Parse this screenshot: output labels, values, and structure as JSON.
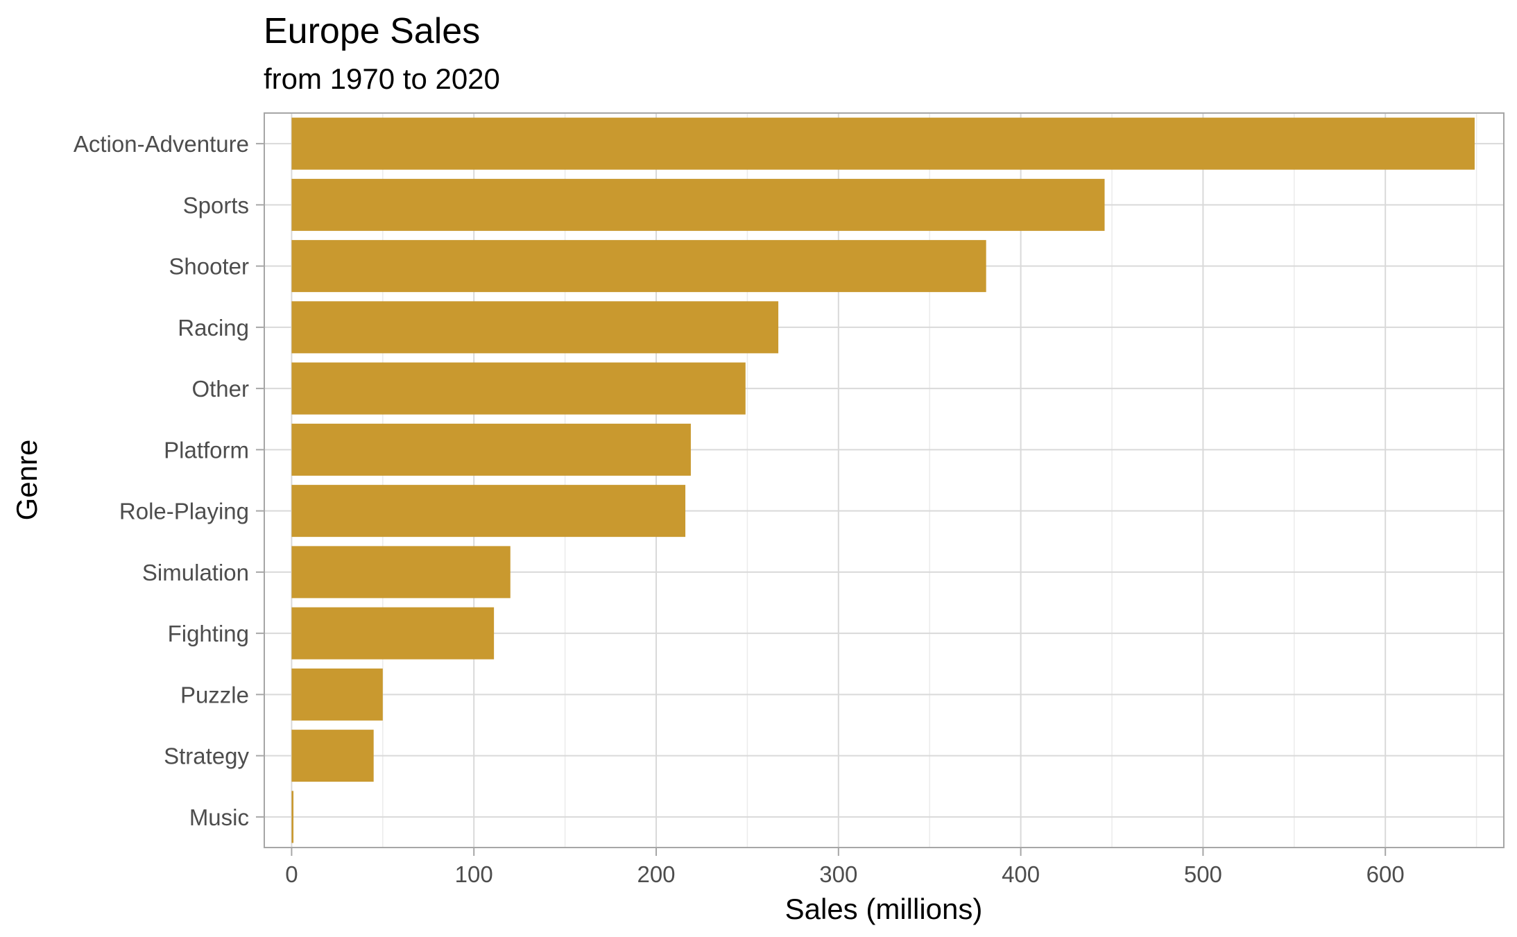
{
  "chart_data": {
    "type": "bar",
    "orientation": "horizontal",
    "title": "Europe Sales",
    "subtitle": "from 1970 to 2020",
    "xlabel": "Sales (millions)",
    "ylabel": "Genre",
    "categories": [
      "Action-Adventure",
      "Sports",
      "Shooter",
      "Racing",
      "Other",
      "Platform",
      "Role-Playing",
      "Simulation",
      "Fighting",
      "Puzzle",
      "Strategy",
      "Music"
    ],
    "values": [
      649,
      446,
      381,
      267,
      249,
      219,
      216,
      120,
      111,
      50,
      45,
      1
    ],
    "xlim": [
      -15,
      665
    ],
    "xticks": [
      0,
      100,
      200,
      300,
      400,
      500,
      600
    ],
    "xtick_labels": [
      "0",
      "100",
      "200",
      "300",
      "400",
      "500",
      "600"
    ],
    "grid": true,
    "legend": "none",
    "colors": {
      "bar": "#C9992F",
      "grid_major": "#D9D9D9",
      "grid_minor": "#EBEBEB",
      "panel_border": "#A6A6A6",
      "tick_label": "#4D4D4D"
    }
  }
}
